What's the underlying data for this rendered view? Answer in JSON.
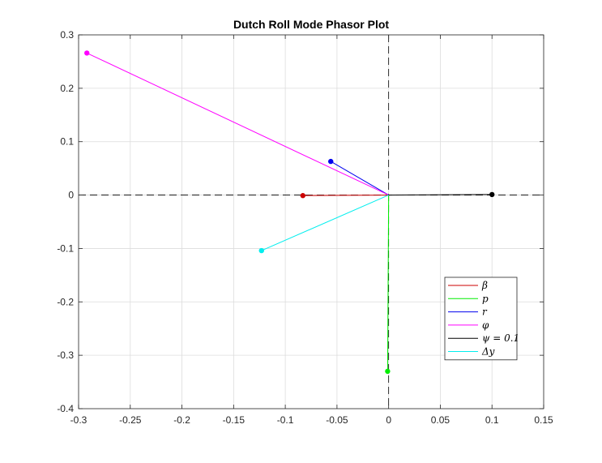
{
  "chart_data": {
    "type": "line",
    "title": "Dutch Roll Mode Phasor Plot",
    "xlabel": "",
    "ylabel": "",
    "xlim": [
      -0.3,
      0.15
    ],
    "ylim": [
      -0.4,
      0.3
    ],
    "xticks": [
      -0.3,
      -0.25,
      -0.2,
      -0.15,
      -0.1,
      -0.05,
      0,
      0.05,
      0.1,
      0.15
    ],
    "xtick_labels": [
      "-0.3",
      "-0.25",
      "-0.2",
      "-0.15",
      "-0.1",
      "-0.05",
      "0",
      "0.05",
      "0.1",
      "0.15"
    ],
    "yticks": [
      -0.4,
      -0.3,
      -0.2,
      -0.1,
      0,
      0.1,
      0.2,
      0.3
    ],
    "ytick_labels": [
      "-0.4",
      "-0.3",
      "-0.2",
      "-0.1",
      "0",
      "0.1",
      "0.2",
      "0.3"
    ],
    "grid": true,
    "legend_position": "bottom-right",
    "reference_lines": {
      "x": 0,
      "y": 0,
      "style": "dashed",
      "color": "#000000"
    },
    "series": [
      {
        "name": "β",
        "color": "#cc0000",
        "x": [
          0,
          -0.083
        ],
        "y": [
          0,
          -0.001
        ]
      },
      {
        "name": "p",
        "color": "#00ee00",
        "x": [
          0,
          -0.001
        ],
        "y": [
          0,
          -0.33
        ]
      },
      {
        "name": "r",
        "color": "#0000ee",
        "x": [
          0,
          -0.056
        ],
        "y": [
          0,
          0.063
        ]
      },
      {
        "name": "φ",
        "color": "#ff00ff",
        "x": [
          0,
          -0.292
        ],
        "y": [
          0,
          0.266
        ]
      },
      {
        "name": "ψ = 0.1",
        "color": "#000000",
        "x": [
          0,
          0.1
        ],
        "y": [
          0,
          0.001
        ]
      },
      {
        "name": "Δy",
        "color": "#00eeee",
        "x": [
          0,
          -0.123
        ],
        "y": [
          0,
          -0.104
        ]
      }
    ]
  }
}
